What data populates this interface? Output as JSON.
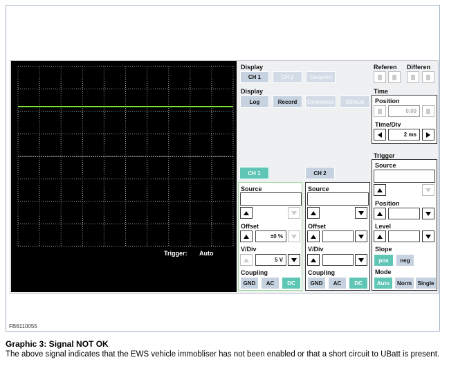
{
  "scope": {
    "trigger_label": "Trigger:",
    "trigger_mode": "Auto"
  },
  "display": {
    "label": "Display",
    "buttons": [
      "CH 1",
      "CH 2",
      "Coupled"
    ]
  },
  "display2": {
    "label": "Display",
    "buttons": [
      "Log",
      "Record",
      "Compress",
      "Stimuli"
    ]
  },
  "reference": {
    "label": "Referen"
  },
  "difference": {
    "label": "Differen"
  },
  "time": {
    "label": "Time",
    "position_label": "Position",
    "position_value": "0.00",
    "timediv_label": "Time/Div",
    "timediv_value": "2 ms"
  },
  "channels": [
    {
      "tab": "CH 1",
      "source_label": "Source",
      "offset_label": "Offset",
      "offset_value": "±0 %",
      "vdiv_label": "V/Div",
      "vdiv_value": "5 V",
      "coupling_label": "Coupling",
      "coupling_buttons": [
        "GND",
        "AC",
        "DC"
      ]
    },
    {
      "tab": "CH 2",
      "source_label": "Source",
      "offset_label": "Offset",
      "vdiv_label": "V/Div",
      "coupling_label": "Coupling",
      "coupling_buttons": [
        "GND",
        "AC",
        "DC"
      ]
    }
  ],
  "trigger": {
    "label": "Trigger",
    "source_label": "Source",
    "position_label": "Position",
    "level_label": "Level",
    "slope_label": "Slope",
    "slope_buttons": [
      "pos",
      "neg"
    ],
    "mode_label": "Mode",
    "mode_buttons": [
      "Auto",
      "Norm",
      "Single"
    ]
  },
  "figure_id": "FB6110055",
  "caption": {
    "title": "Graphic 3: Signal NOT OK",
    "text": "The above signal indicates that the EWS vehicle immobliser has not been enabled or that a short circuit to UBatt is present."
  }
}
